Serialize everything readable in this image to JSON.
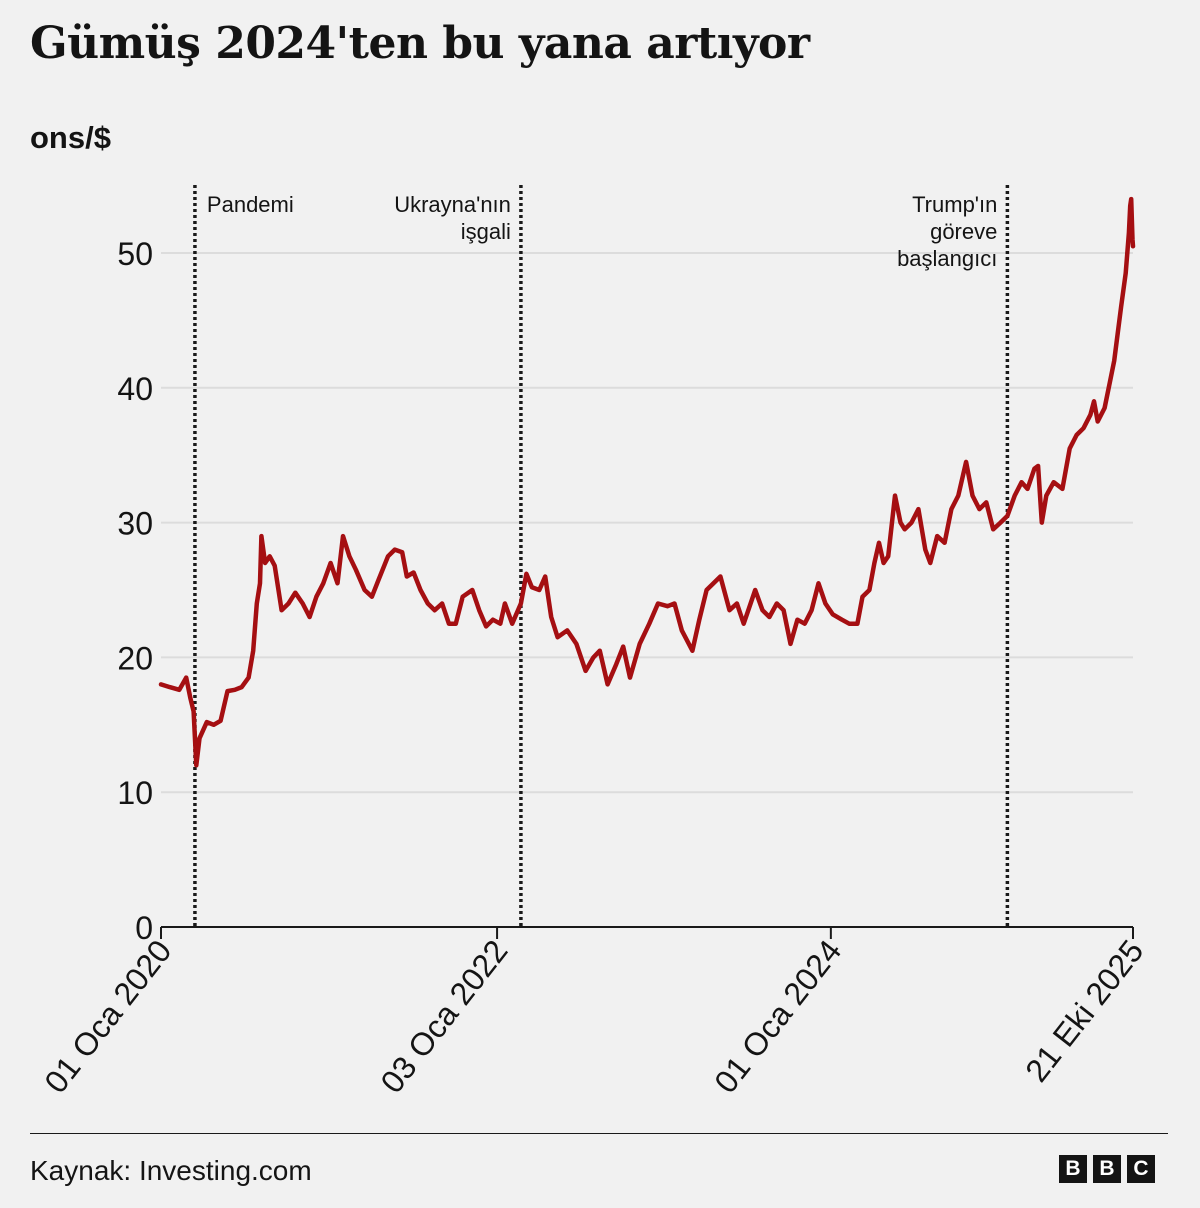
{
  "title": "Gümüş 2024'ten bu yana artıyor",
  "unit_label": "ons/$",
  "source": "Kaynak: Investing.com",
  "logo_letters": [
    "B",
    "B",
    "C"
  ],
  "colors": {
    "line": "#a50f12",
    "grid": "#dcdcdc",
    "text": "#141414",
    "background": "#f1f1f1"
  },
  "chart_data": {
    "type": "line",
    "title": "Gümüş 2024'ten bu yana artıyor",
    "ylabel": "ons/$",
    "xlabel": "",
    "ylim": [
      0,
      55
    ],
    "y_ticks": [
      0,
      10,
      20,
      30,
      40,
      50
    ],
    "x_range": [
      "2020-01-01",
      "2025-10-21"
    ],
    "x_tick_labels": [
      {
        "date": "2020-01-01",
        "label": "01 Oca 2020"
      },
      {
        "date": "2022-01-03",
        "label": "03 Oca 2022"
      },
      {
        "date": "2024-01-01",
        "label": "01 Oca 2024"
      },
      {
        "date": "2025-10-21",
        "label": "21 Eki 2025"
      }
    ],
    "grid": "horizontal",
    "annotations": [
      {
        "date": "2020-03-15",
        "lines": [
          "Pandemi"
        ],
        "align": "right"
      },
      {
        "date": "2022-02-24",
        "lines": [
          "Ukrayna'nın",
          "işgali"
        ],
        "align": "left"
      },
      {
        "date": "2025-01-20",
        "lines": [
          "Trump'ın",
          "göreve",
          "başlangıcı"
        ],
        "align": "left"
      }
    ],
    "series": [
      {
        "points": [
          [
            "2020-01-01",
            18.0
          ],
          [
            "2020-01-20",
            17.8
          ],
          [
            "2020-02-10",
            17.6
          ],
          [
            "2020-02-25",
            18.5
          ],
          [
            "2020-03-05",
            17.0
          ],
          [
            "2020-03-12",
            16.0
          ],
          [
            "2020-03-18",
            12.0
          ],
          [
            "2020-03-25",
            14.0
          ],
          [
            "2020-04-10",
            15.2
          ],
          [
            "2020-04-25",
            15.0
          ],
          [
            "2020-05-10",
            15.3
          ],
          [
            "2020-05-25",
            17.5
          ],
          [
            "2020-06-10",
            17.6
          ],
          [
            "2020-06-25",
            17.8
          ],
          [
            "2020-07-10",
            18.5
          ],
          [
            "2020-07-20",
            20.5
          ],
          [
            "2020-07-28",
            24.0
          ],
          [
            "2020-08-04",
            25.5
          ],
          [
            "2020-08-07",
            29.0
          ],
          [
            "2020-08-15",
            27.0
          ],
          [
            "2020-08-25",
            27.5
          ],
          [
            "2020-09-05",
            26.8
          ],
          [
            "2020-09-20",
            23.5
          ],
          [
            "2020-10-05",
            24.0
          ],
          [
            "2020-10-20",
            24.8
          ],
          [
            "2020-11-05",
            24.0
          ],
          [
            "2020-11-20",
            23.0
          ],
          [
            "2020-12-05",
            24.5
          ],
          [
            "2020-12-20",
            25.5
          ],
          [
            "2021-01-05",
            27.0
          ],
          [
            "2021-01-20",
            25.5
          ],
          [
            "2021-02-01",
            29.0
          ],
          [
            "2021-02-15",
            27.5
          ],
          [
            "2021-03-01",
            26.5
          ],
          [
            "2021-03-20",
            25.0
          ],
          [
            "2021-04-05",
            24.5
          ],
          [
            "2021-04-20",
            25.8
          ],
          [
            "2021-05-10",
            27.5
          ],
          [
            "2021-05-25",
            28.0
          ],
          [
            "2021-06-10",
            27.8
          ],
          [
            "2021-06-20",
            26.0
          ],
          [
            "2021-07-05",
            26.3
          ],
          [
            "2021-07-20",
            25.0
          ],
          [
            "2021-08-05",
            24.0
          ],
          [
            "2021-08-20",
            23.5
          ],
          [
            "2021-09-05",
            24.0
          ],
          [
            "2021-09-20",
            22.5
          ],
          [
            "2021-10-05",
            22.5
          ],
          [
            "2021-10-20",
            24.5
          ],
          [
            "2021-11-10",
            25.0
          ],
          [
            "2021-11-25",
            23.5
          ],
          [
            "2021-12-10",
            22.3
          ],
          [
            "2021-12-25",
            22.8
          ],
          [
            "2022-01-10",
            22.5
          ],
          [
            "2022-01-20",
            24.0
          ],
          [
            "2022-02-05",
            22.5
          ],
          [
            "2022-02-24",
            24.0
          ],
          [
            "2022-03-08",
            26.2
          ],
          [
            "2022-03-20",
            25.2
          ],
          [
            "2022-04-05",
            25.0
          ],
          [
            "2022-04-18",
            26.0
          ],
          [
            "2022-05-01",
            23.0
          ],
          [
            "2022-05-15",
            21.5
          ],
          [
            "2022-06-05",
            22.0
          ],
          [
            "2022-06-25",
            21.0
          ],
          [
            "2022-07-15",
            19.0
          ],
          [
            "2022-08-01",
            20.0
          ],
          [
            "2022-08-15",
            20.5
          ],
          [
            "2022-09-01",
            18.0
          ],
          [
            "2022-09-20",
            19.5
          ],
          [
            "2022-10-05",
            20.8
          ],
          [
            "2022-10-20",
            18.5
          ],
          [
            "2022-11-10",
            21.0
          ],
          [
            "2022-12-01",
            22.5
          ],
          [
            "2022-12-20",
            24.0
          ],
          [
            "2023-01-10",
            23.8
          ],
          [
            "2023-01-25",
            24.0
          ],
          [
            "2023-02-10",
            22.0
          ],
          [
            "2023-03-05",
            20.5
          ],
          [
            "2023-03-20",
            22.8
          ],
          [
            "2023-04-05",
            25.0
          ],
          [
            "2023-04-20",
            25.5
          ],
          [
            "2023-05-05",
            26.0
          ],
          [
            "2023-05-25",
            23.5
          ],
          [
            "2023-06-10",
            24.0
          ],
          [
            "2023-06-25",
            22.5
          ],
          [
            "2023-07-10",
            24.0
          ],
          [
            "2023-07-20",
            25.0
          ],
          [
            "2023-08-05",
            23.5
          ],
          [
            "2023-08-20",
            23.0
          ],
          [
            "2023-09-05",
            24.0
          ],
          [
            "2023-09-20",
            23.5
          ],
          [
            "2023-10-05",
            21.0
          ],
          [
            "2023-10-20",
            22.8
          ],
          [
            "2023-11-05",
            22.5
          ],
          [
            "2023-11-20",
            23.5
          ],
          [
            "2023-12-05",
            25.5
          ],
          [
            "2023-12-20",
            24.0
          ],
          [
            "2024-01-05",
            23.2
          ],
          [
            "2024-01-25",
            22.8
          ],
          [
            "2024-02-10",
            22.5
          ],
          [
            "2024-02-28",
            22.5
          ],
          [
            "2024-03-10",
            24.5
          ],
          [
            "2024-03-25",
            25.0
          ],
          [
            "2024-04-05",
            27.0
          ],
          [
            "2024-04-15",
            28.5
          ],
          [
            "2024-04-25",
            27.0
          ],
          [
            "2024-05-05",
            27.5
          ],
          [
            "2024-05-20",
            32.0
          ],
          [
            "2024-06-01",
            30.0
          ],
          [
            "2024-06-10",
            29.5
          ],
          [
            "2024-06-25",
            30.0
          ],
          [
            "2024-07-10",
            31.0
          ],
          [
            "2024-07-25",
            28.0
          ],
          [
            "2024-08-05",
            27.0
          ],
          [
            "2024-08-20",
            29.0
          ],
          [
            "2024-09-05",
            28.5
          ],
          [
            "2024-09-20",
            31.0
          ],
          [
            "2024-10-05",
            32.0
          ],
          [
            "2024-10-22",
            34.5
          ],
          [
            "2024-11-05",
            32.0
          ],
          [
            "2024-11-20",
            31.0
          ],
          [
            "2024-12-05",
            31.5
          ],
          [
            "2024-12-20",
            29.5
          ],
          [
            "2025-01-05",
            30.0
          ],
          [
            "2025-01-20",
            30.5
          ],
          [
            "2025-02-05",
            32.0
          ],
          [
            "2025-02-20",
            33.0
          ],
          [
            "2025-03-05",
            32.5
          ],
          [
            "2025-03-20",
            34.0
          ],
          [
            "2025-03-28",
            34.2
          ],
          [
            "2025-04-05",
            30.0
          ],
          [
            "2025-04-15",
            32.0
          ],
          [
            "2025-05-01",
            33.0
          ],
          [
            "2025-05-20",
            32.5
          ],
          [
            "2025-06-05",
            35.5
          ],
          [
            "2025-06-20",
            36.5
          ],
          [
            "2025-07-05",
            37.0
          ],
          [
            "2025-07-20",
            38.0
          ],
          [
            "2025-07-28",
            39.0
          ],
          [
            "2025-08-05",
            37.5
          ],
          [
            "2025-08-20",
            38.5
          ],
          [
            "2025-09-01",
            40.5
          ],
          [
            "2025-09-10",
            42.0
          ],
          [
            "2025-09-25",
            46.0
          ],
          [
            "2025-10-05",
            48.5
          ],
          [
            "2025-10-12",
            51.5
          ],
          [
            "2025-10-15",
            53.5
          ],
          [
            "2025-10-17",
            54.0
          ],
          [
            "2025-10-20",
            51.0
          ],
          [
            "2025-10-21",
            50.5
          ]
        ]
      }
    ]
  }
}
